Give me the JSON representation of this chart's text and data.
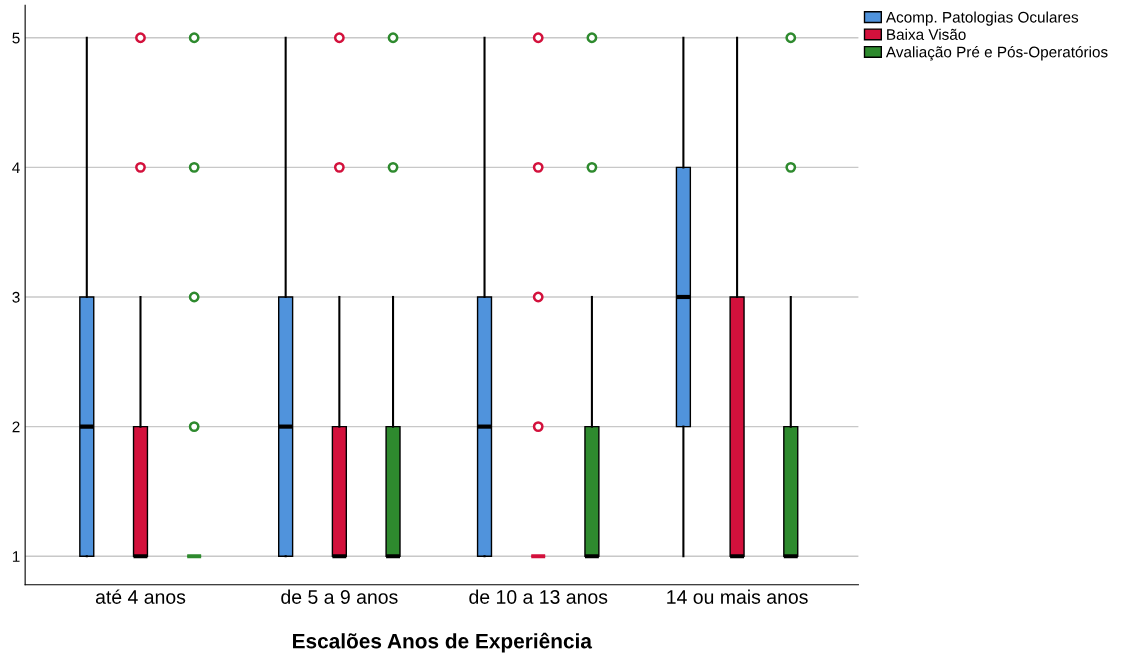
{
  "chart_data": {
    "type": "box",
    "xlabel": "Escalões Anos de Experiência",
    "categories": [
      "até 4 anos",
      "de 5 a 9 anos",
      "de 10 a 13 anos",
      "14 ou mais anos"
    ],
    "ylim": [
      0.78,
      5.25
    ],
    "yticks": [
      1,
      2,
      3,
      4,
      5
    ],
    "grid": "y",
    "legend": "top right",
    "series": [
      {
        "name": "Acomp. Patologias Oculares",
        "color": "#5093dc",
        "boxes": [
          {
            "low": 1,
            "q1": 1,
            "median": 2,
            "q3": 3,
            "high": 5
          },
          {
            "low": 1,
            "q1": 1,
            "median": 2,
            "q3": 3,
            "high": 5
          },
          {
            "low": 1,
            "q1": 1,
            "median": 2,
            "q3": 3,
            "high": 5
          },
          {
            "low": 1,
            "q1": 2,
            "median": 3,
            "q3": 4,
            "high": 5
          }
        ]
      },
      {
        "name": "Baixa Visão",
        "color": "#d3113c",
        "boxes": [
          {
            "low": 1,
            "q1": 1,
            "median": 1,
            "q3": 2,
            "high": 3,
            "outliers": [
              4,
              5
            ]
          },
          {
            "low": 1,
            "q1": 1,
            "median": 1,
            "q3": 2,
            "high": 3,
            "outliers": [
              4,
              5
            ]
          },
          {
            "low": 1,
            "q1": 1,
            "median": 1,
            "q3": 1,
            "high": 1,
            "outliers": [
              2,
              3,
              4,
              5
            ]
          },
          {
            "low": 1,
            "q1": 1,
            "median": 1,
            "q3": 3,
            "high": 5
          }
        ]
      },
      {
        "name": "Avaliação Pré e Pós-Operatórios",
        "color": "#2e8a2e",
        "boxes": [
          {
            "low": 1,
            "q1": 1,
            "median": 1,
            "q3": 1,
            "high": 1,
            "outliers": [
              2,
              3,
              4,
              5
            ]
          },
          {
            "low": 1,
            "q1": 1,
            "median": 1,
            "q3": 2,
            "high": 3,
            "outliers": [
              4,
              5
            ]
          },
          {
            "low": 1,
            "q1": 1,
            "median": 1,
            "q3": 2,
            "high": 3,
            "outliers": [
              4,
              5
            ]
          },
          {
            "low": 1,
            "q1": 1,
            "median": 1,
            "q3": 2,
            "high": 3,
            "outliers": [
              4,
              5
            ]
          }
        ]
      }
    ]
  }
}
